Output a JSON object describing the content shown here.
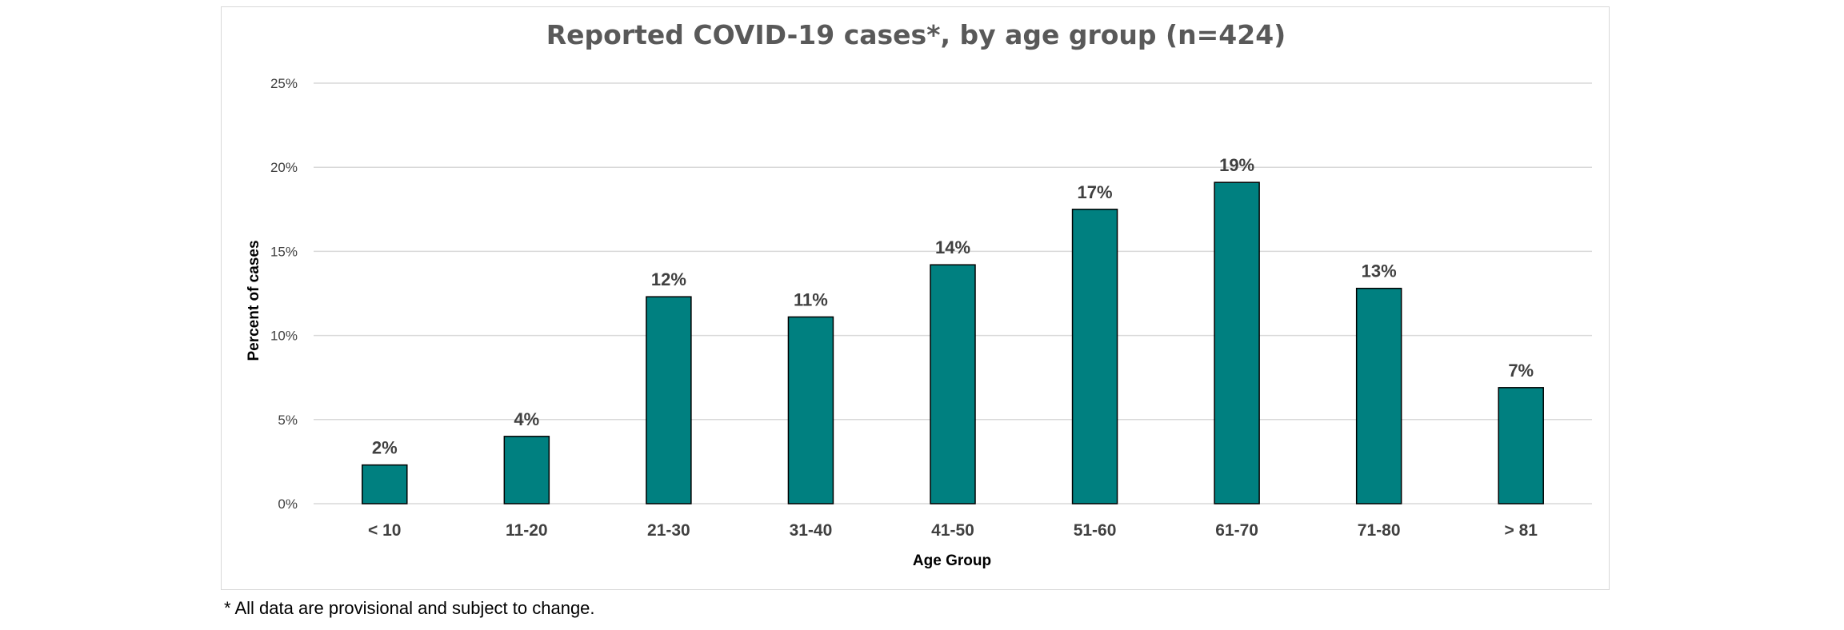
{
  "chart_data": {
    "type": "bar",
    "title": "Reported COVID-19 cases*, by age group (n=424)",
    "xlabel": "Age Group",
    "ylabel": "Percent of cases",
    "categories": [
      "< 10",
      "11-20",
      "21-30",
      "31-40",
      "41-50",
      "51-60",
      "61-70",
      "71-80",
      "> 81"
    ],
    "values": [
      2.3,
      4.0,
      12.3,
      11.1,
      14.2,
      17.5,
      19.1,
      12.8,
      6.9
    ],
    "data_labels": [
      "2%",
      "4%",
      "12%",
      "11%",
      "14%",
      "17%",
      "19%",
      "13%",
      "7%"
    ],
    "ylim": [
      0,
      25
    ],
    "yticks": [
      0,
      5,
      10,
      15,
      20,
      25
    ],
    "ytick_labels": [
      "0%",
      "5%",
      "10%",
      "15%",
      "20%",
      "25%"
    ],
    "grid": true,
    "legend": "none",
    "bar_color": "#008080"
  },
  "footnote": "* All data are provisional and subject to change."
}
